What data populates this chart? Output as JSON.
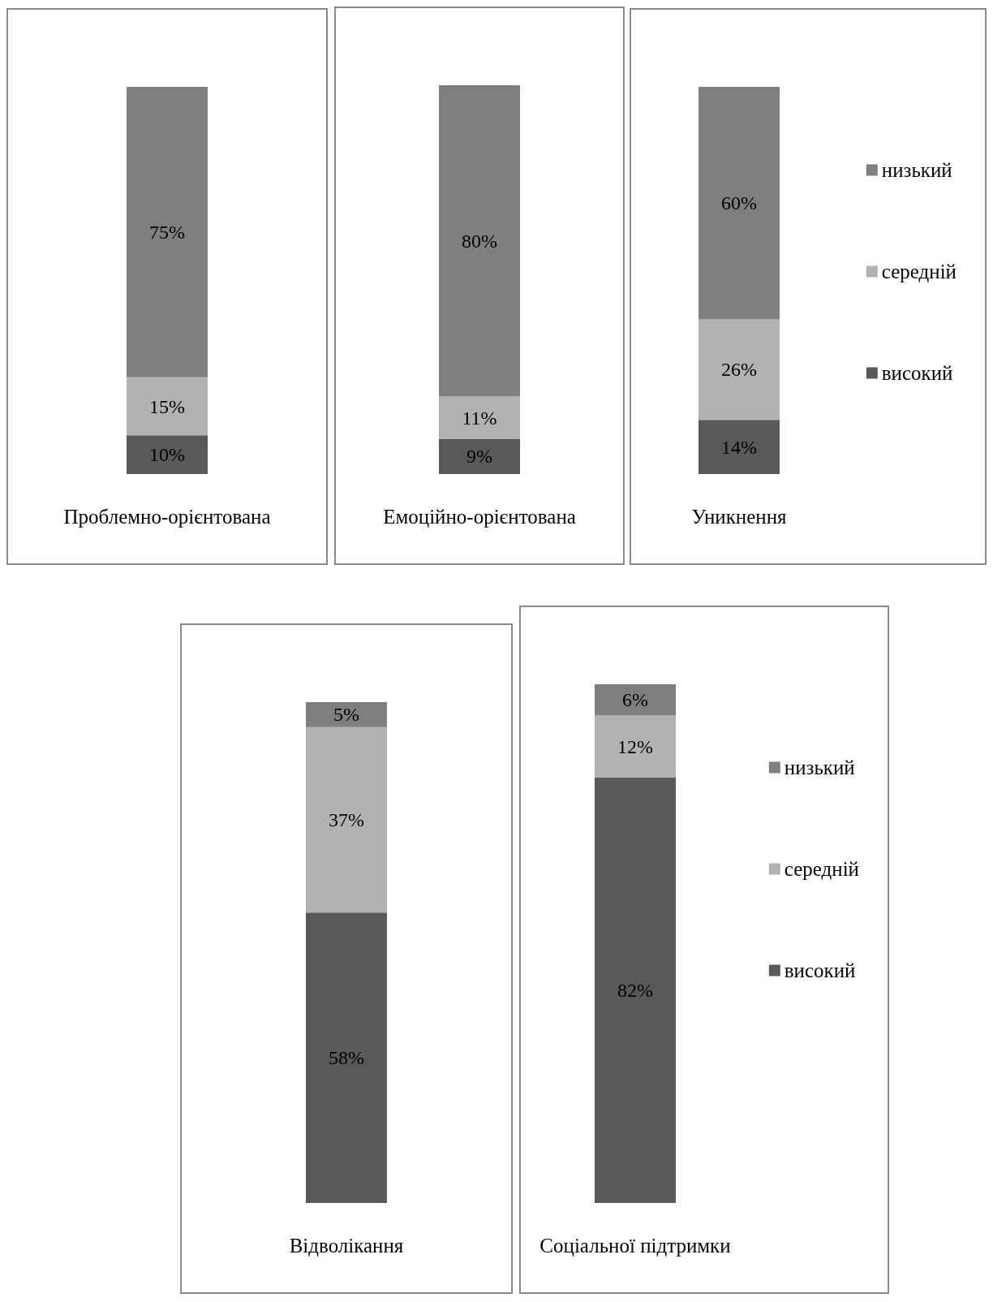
{
  "chart_data": [
    {
      "type": "bar",
      "stacked": true,
      "categories": [
        "Проблемно-орієнтована"
      ],
      "legend": false,
      "series": [
        {
          "color": "#595959",
          "values": [
            10
          ],
          "value_labels": [
            "10%"
          ]
        },
        {
          "color": "#b2b2b2",
          "values": [
            15
          ],
          "value_labels": [
            "15%"
          ]
        },
        {
          "color": "#7f7f7f",
          "values": [
            75
          ],
          "value_labels": [
            "75%"
          ]
        }
      ]
    },
    {
      "type": "bar",
      "stacked": true,
      "categories": [
        "Емоційно-орієнтована"
      ],
      "legend": false,
      "series": [
        {
          "color": "#595959",
          "values": [
            9
          ],
          "value_labels": [
            "9%"
          ]
        },
        {
          "color": "#b2b2b2",
          "values": [
            11
          ],
          "value_labels": [
            "11%"
          ]
        },
        {
          "color": "#7f7f7f",
          "values": [
            80
          ],
          "value_labels": [
            "80%"
          ]
        }
      ]
    },
    {
      "type": "bar",
      "stacked": true,
      "categories": [
        "Уникнення"
      ],
      "legend": "right",
      "series": [
        {
          "name": "високий",
          "color": "#595959",
          "values": [
            14
          ],
          "value_labels": [
            "14%"
          ]
        },
        {
          "name": "середній",
          "color": "#b2b2b2",
          "values": [
            26
          ],
          "value_labels": [
            "26%"
          ]
        },
        {
          "name": "низький",
          "color": "#7f7f7f",
          "values": [
            60
          ],
          "value_labels": [
            "60%"
          ]
        }
      ]
    },
    {
      "type": "bar",
      "stacked": true,
      "categories": [
        "Відволікання"
      ],
      "legend": false,
      "series": [
        {
          "color": "#595959",
          "values": [
            58
          ],
          "value_labels": [
            "58%"
          ]
        },
        {
          "color": "#b2b2b2",
          "values": [
            37
          ],
          "value_labels": [
            "37%"
          ]
        },
        {
          "color": "#7f7f7f",
          "values": [
            5
          ],
          "value_labels": [
            "5%"
          ]
        }
      ]
    },
    {
      "type": "bar",
      "stacked": true,
      "categories": [
        "Соціальної підтримки"
      ],
      "legend": "right",
      "series": [
        {
          "name": "високий",
          "color": "#595959",
          "values": [
            82
          ],
          "value_labels": [
            "82%"
          ]
        },
        {
          "name": "середній",
          "color": "#b2b2b2",
          "values": [
            12
          ],
          "value_labels": [
            "12%"
          ]
        },
        {
          "name": "низький",
          "color": "#7f7f7f",
          "values": [
            6
          ],
          "value_labels": [
            "6%"
          ]
        }
      ]
    }
  ]
}
